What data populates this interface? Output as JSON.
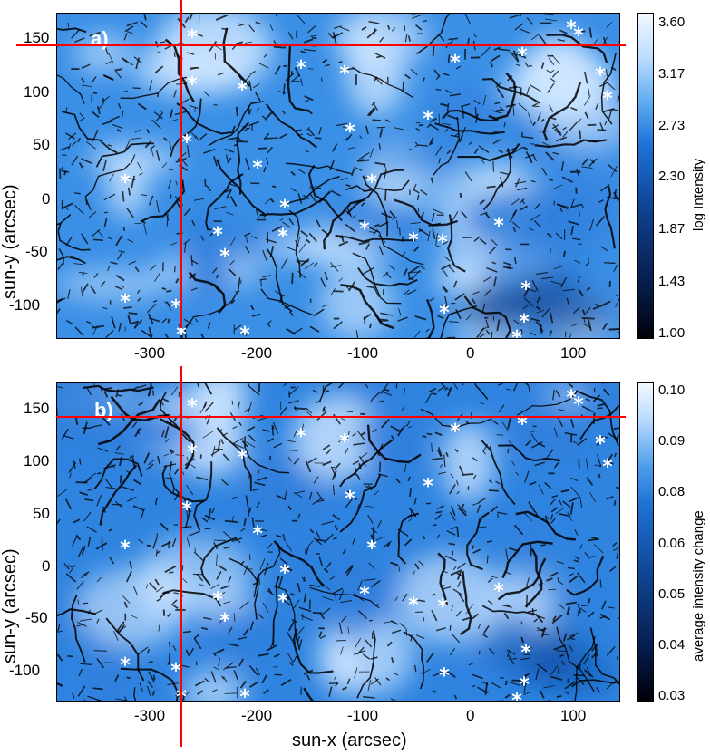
{
  "panels": [
    {
      "label": "a)",
      "ylabel": "sun-y (arcsec)",
      "x_ticks": [
        "-300",
        "-200",
        "-100",
        "0",
        "100"
      ],
      "y_ticks": [
        "150",
        "100",
        "50",
        "0",
        "-50",
        "-100"
      ],
      "colorbar": {
        "title": "log Intensity",
        "ticks": [
          "3.60",
          "3.17",
          "2.73",
          "2.30",
          "1.87",
          "1.43",
          "1.00"
        ]
      }
    },
    {
      "label": "b)",
      "ylabel": "sun-y (arcsec)",
      "xlabel": "sun-x (arcsec)",
      "x_ticks": [
        "-300",
        "-200",
        "-100",
        "0",
        "100"
      ],
      "y_ticks": [
        "150",
        "100",
        "50",
        "0",
        "-50",
        "-100"
      ],
      "colorbar": {
        "title": "average intensity change",
        "ticks": [
          "0.10",
          "0.09",
          "0.08",
          "0.06",
          "0.05",
          "0.04",
          "0.03"
        ]
      }
    }
  ],
  "colors": {
    "map_base": "#3a8fe6",
    "map_light": "#cfe6ff",
    "network_lanes": "#000000",
    "markers": "#ffffff",
    "crosshair": "#ff0000"
  }
}
